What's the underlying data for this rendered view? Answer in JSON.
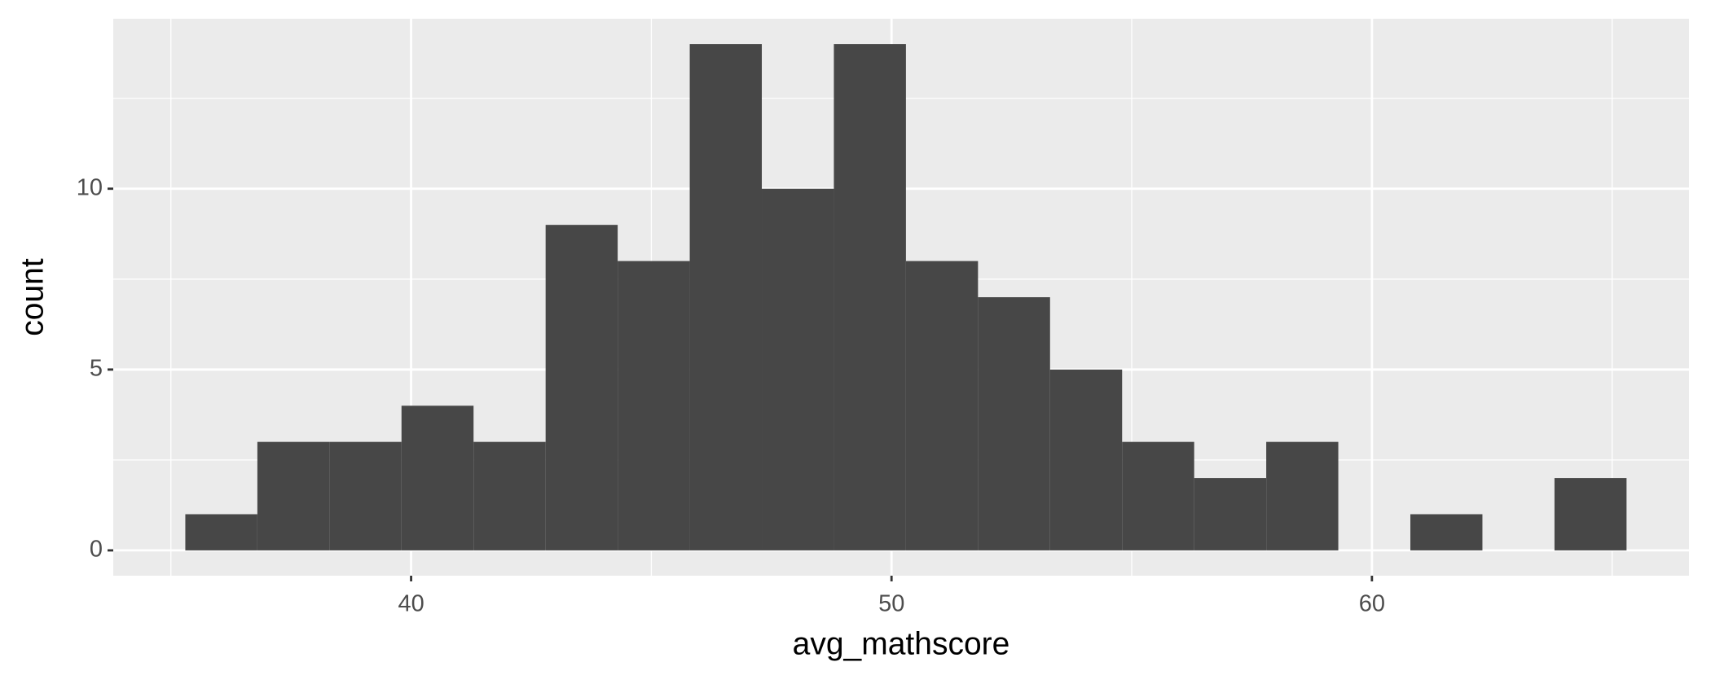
{
  "chart_data": {
    "type": "histogram",
    "x_label": "avg_mathscore",
    "y_label": "count",
    "bins": [
      35.3,
      36.8,
      38.3,
      39.8,
      41.3,
      42.8,
      44.3,
      45.8,
      47.3,
      48.8,
      50.3,
      51.8,
      53.3,
      54.8,
      56.3,
      57.8,
      59.3,
      60.8,
      62.3,
      63.8,
      65.3
    ],
    "counts": [
      1,
      3,
      3,
      4,
      3,
      9,
      8,
      14,
      10,
      14,
      8,
      7,
      5,
      3,
      2,
      3,
      0,
      1,
      0,
      2
    ],
    "color": "#474747",
    "xlim": [
      33.8,
      66.6
    ],
    "ylim": [
      -0.7,
      14.7
    ],
    "xticks": [
      40,
      50,
      60
    ],
    "yticks": [
      0,
      5,
      10
    ],
    "x_minor_grid": [
      35,
      45,
      55,
      65
    ],
    "y_minor_grid": [
      2.5,
      7.5,
      12.5
    ],
    "grid": true
  }
}
